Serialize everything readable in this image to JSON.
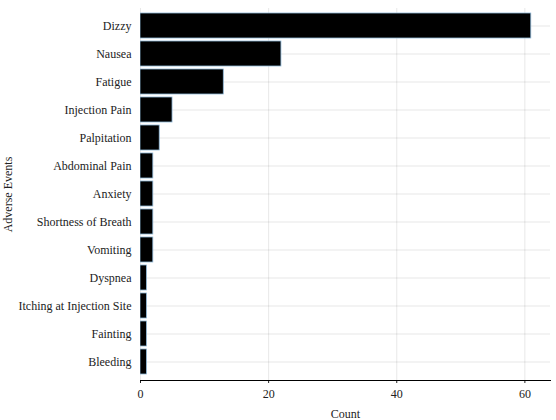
{
  "chart_data": {
    "type": "bar",
    "orientation": "horizontal",
    "x_label": "Count",
    "y_label": "Adverse Events",
    "categories": [
      "Dizzy",
      "Nausea",
      "Fatigue",
      "Injection Pain",
      "Palpitation",
      "Abdominal Pain",
      "Anxiety",
      "Shortness of Breath",
      "Vomiting",
      "Dyspnea",
      "Itching at Injection Site",
      "Fainting",
      "Bleeding"
    ],
    "values": [
      61,
      22,
      13,
      5,
      3,
      2,
      2,
      2,
      2,
      1,
      1,
      1,
      1
    ],
    "color": "#000000",
    "xlim": [
      0,
      64
    ],
    "xticks": [
      0,
      20,
      40,
      60
    ],
    "grid": true
  }
}
